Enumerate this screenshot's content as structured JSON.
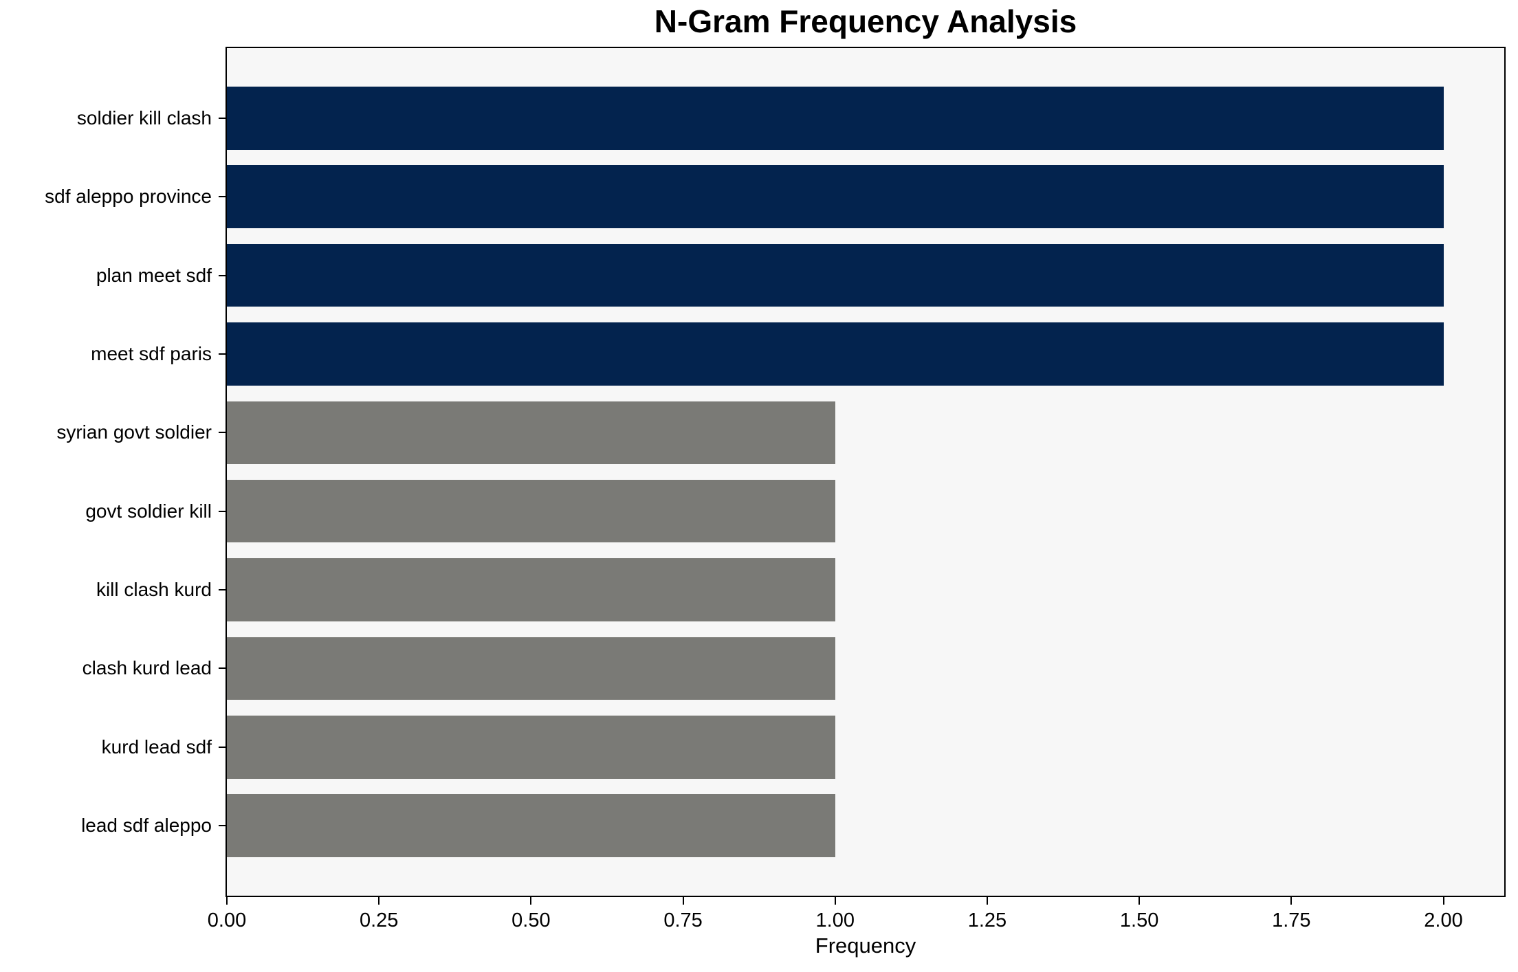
{
  "chart_data": {
    "type": "bar",
    "orientation": "horizontal",
    "title": "N-Gram Frequency Analysis",
    "xlabel": "Frequency",
    "ylabel": "",
    "categories": [
      "soldier kill clash",
      "sdf aleppo province",
      "plan meet sdf",
      "meet sdf paris",
      "syrian govt soldier",
      "govt soldier kill",
      "kill clash kurd",
      "clash kurd lead",
      "kurd lead sdf",
      "lead sdf aleppo"
    ],
    "values": [
      2,
      2,
      2,
      2,
      1,
      1,
      1,
      1,
      1,
      1
    ],
    "bar_colors": [
      "#03234e",
      "#03234e",
      "#03234e",
      "#03234e",
      "#7a7a76",
      "#7a7a76",
      "#7a7a76",
      "#7a7a76",
      "#7a7a76",
      "#7a7a76"
    ],
    "xlim": [
      0,
      2.1
    ],
    "xticks": [
      {
        "value": 0.0,
        "label": "0.00"
      },
      {
        "value": 0.25,
        "label": "0.25"
      },
      {
        "value": 0.5,
        "label": "0.50"
      },
      {
        "value": 0.75,
        "label": "0.75"
      },
      {
        "value": 1.0,
        "label": "1.00"
      },
      {
        "value": 1.25,
        "label": "1.25"
      },
      {
        "value": 1.5,
        "label": "1.50"
      },
      {
        "value": 1.75,
        "label": "1.75"
      },
      {
        "value": 2.0,
        "label": "2.00"
      }
    ],
    "grid": false,
    "legend": null,
    "colors": {
      "high_frequency_bar": "#03234e",
      "low_frequency_bar": "#7a7a76",
      "plot_background": "#f7f7f7",
      "figure_background": "#ffffff",
      "spine": "#000000",
      "text": "#000000"
    }
  }
}
